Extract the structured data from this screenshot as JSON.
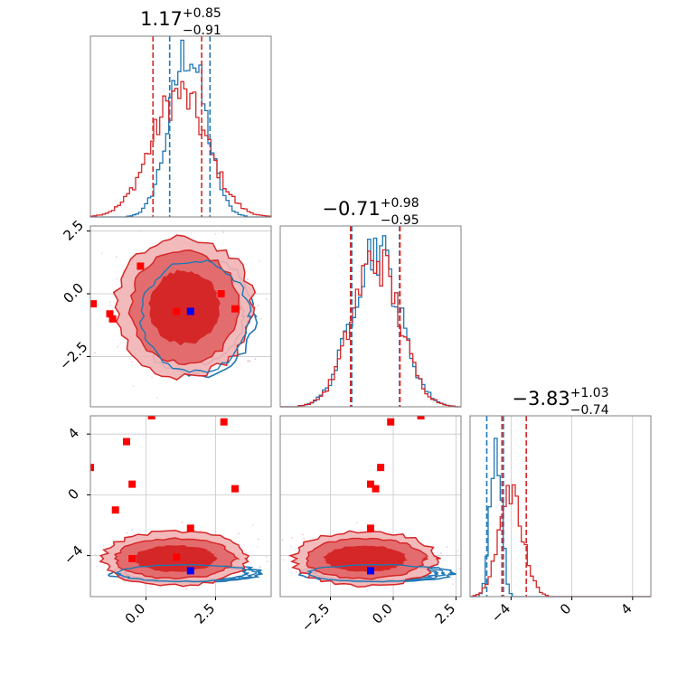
{
  "colors": {
    "blue": "#1f77b4",
    "red": "#d62728",
    "red_fill_outer": "#f2b3b4",
    "red_fill_mid": "#e36d6e",
    "red_fill_inner": "#d62728",
    "marker_red": "#ff0000",
    "marker_blue": "#0000ff",
    "grid": "#c8c8c8",
    "frame": "#808080"
  },
  "chart_data": [
    {
      "type": "histogram",
      "panel": "p1-marginal",
      "x_range": [
        -2.0,
        4.5
      ],
      "title": {
        "value": "1.17",
        "sup": "+0.85",
        "sub": "−0.91"
      },
      "quantile_lines_blue": [
        0.85,
        2.3
      ],
      "quantile_lines_red": [
        0.25,
        2.0
      ],
      "series": [
        {
          "color": "blue",
          "mean": 1.5,
          "std": 0.65,
          "peak": 0.92
        },
        {
          "color": "red",
          "mean": 1.2,
          "std": 1.0,
          "peak": 0.68
        }
      ]
    },
    {
      "type": "contour",
      "panel": "p1-p2",
      "x_range": [
        -2.0,
        4.5
      ],
      "y_range": [
        -4.5,
        2.7
      ],
      "y_ticks": [
        {
          "v": 2.5,
          "label": "2.5"
        },
        {
          "v": 0.0,
          "label": "0.0"
        },
        {
          "v": -2.5,
          "label": "−2.5"
        }
      ],
      "red_markers": [
        [
          -1.9,
          -0.4
        ],
        [
          -1.3,
          -0.8
        ],
        [
          -1.2,
          -1.0
        ],
        [
          -0.2,
          1.1
        ],
        [
          1.1,
          -0.7
        ],
        [
          1.6,
          -0.7
        ],
        [
          2.7,
          0.0
        ],
        [
          3.2,
          -0.6
        ]
      ],
      "blue_markers": [
        [
          1.6,
          -0.7
        ]
      ]
    },
    {
      "type": "histogram",
      "panel": "p2-marginal",
      "x_range": [
        -4.5,
        2.7
      ],
      "title": {
        "value": "−0.71",
        "sup": "+0.98",
        "sub": "−0.95"
      },
      "quantile_lines_blue": [
        -1.65,
        0.25
      ],
      "quantile_lines_red": [
        -1.7,
        0.27
      ],
      "series": [
        {
          "color": "blue",
          "mean": -0.7,
          "std": 0.95,
          "peak": 0.88
        },
        {
          "color": "red",
          "mean": -0.7,
          "std": 0.95,
          "peak": 0.82
        }
      ]
    },
    {
      "type": "contour",
      "panel": "p1-p3",
      "x_range": [
        -2.0,
        4.5
      ],
      "y_range": [
        -6.7,
        5.2
      ],
      "x_ticks": [
        {
          "v": 0.0,
          "label": "0.0"
        },
        {
          "v": 2.5,
          "label": "2.5"
        }
      ],
      "y_ticks": [
        {
          "v": 4,
          "label": "4"
        },
        {
          "v": 0,
          "label": "0"
        },
        {
          "v": -4,
          "label": "−4"
        }
      ],
      "red_markers": [
        [
          -2.0,
          1.8
        ],
        [
          -1.1,
          -1.0
        ],
        [
          -0.7,
          3.5
        ],
        [
          -0.5,
          0.7
        ],
        [
          -0.5,
          -4.2
        ],
        [
          0.2,
          5.2
        ],
        [
          1.1,
          -4.1
        ],
        [
          1.6,
          -2.2
        ],
        [
          2.8,
          4.8
        ],
        [
          3.2,
          0.4
        ]
      ],
      "blue_markers": [
        [
          1.6,
          -5.0
        ]
      ]
    },
    {
      "type": "contour",
      "panel": "p2-p3",
      "x_range": [
        -4.5,
        2.7
      ],
      "y_range": [
        -6.7,
        5.2
      ],
      "x_ticks": [
        {
          "v": -2.5,
          "label": "−2.5"
        },
        {
          "v": 0.0,
          "label": "0.0"
        },
        {
          "v": 2.5,
          "label": "2.5"
        }
      ],
      "red_markers": [
        [
          -0.1,
          4.8
        ],
        [
          -0.5,
          1.8
        ],
        [
          -0.7,
          0.4
        ],
        [
          -0.9,
          0.7
        ],
        [
          -0.9,
          -2.2
        ],
        [
          1.1,
          5.2
        ],
        [
          -0.9,
          -5.0
        ]
      ],
      "blue_markers": [
        [
          -0.9,
          -5.0
        ]
      ]
    },
    {
      "type": "histogram",
      "panel": "p3-marginal",
      "x_range": [
        -6.7,
        5.2
      ],
      "x_ticks": [
        {
          "v": -4,
          "label": "−4"
        },
        {
          "v": 0,
          "label": "0"
        },
        {
          "v": 4,
          "label": "4"
        }
      ],
      "title": {
        "value": "−3.83",
        "sup": "+1.03",
        "sub": "−0.74"
      },
      "quantile_lines_blue": [
        -5.6,
        -4.5
      ],
      "quantile_lines_red": [
        -4.6,
        -3.0
      ],
      "series": [
        {
          "color": "blue",
          "mean": -5.0,
          "std": 0.35,
          "peak": 0.92
        },
        {
          "color": "red",
          "mean": -4.0,
          "std": 0.8,
          "peak": 0.55
        }
      ]
    }
  ]
}
